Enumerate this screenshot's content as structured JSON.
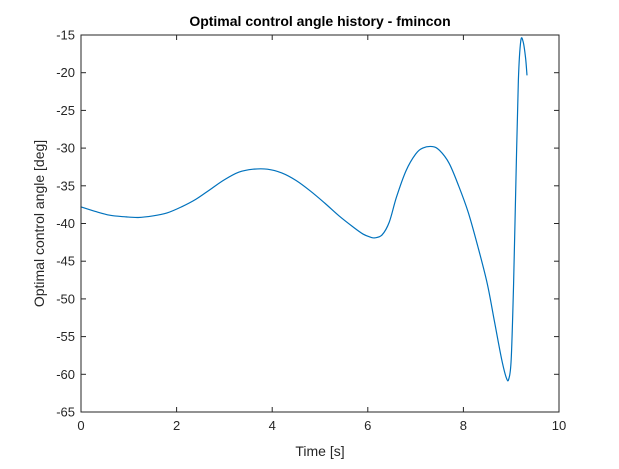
{
  "chart_data": {
    "type": "line",
    "title": "Optimal control angle history - fmincon",
    "xlabel": "Time [s]",
    "ylabel": "Optimal control angle [deg]",
    "xlim": [
      0,
      10
    ],
    "ylim": [
      -65,
      -15
    ],
    "xticks": [
      0,
      2,
      4,
      6,
      8,
      10
    ],
    "yticks": [
      -15,
      -20,
      -25,
      -30,
      -35,
      -40,
      -45,
      -50,
      -55,
      -60,
      -65
    ],
    "grid": false,
    "legend": "none",
    "box": true,
    "series": [
      {
        "color": "#0072BD",
        "x": [
          0,
          0.3,
          0.6,
          0.9,
          1.2,
          1.5,
          1.8,
          2.1,
          2.4,
          2.7,
          3.0,
          3.3,
          3.6,
          3.9,
          4.2,
          4.5,
          4.8,
          5.1,
          5.4,
          5.7,
          5.9,
          6.05,
          6.15,
          6.3,
          6.45,
          6.6,
          6.8,
          7.0,
          7.15,
          7.35,
          7.5,
          7.7,
          7.9,
          8.1,
          8.3,
          8.5,
          8.65,
          8.8,
          8.9,
          8.95,
          9.0,
          9.05,
          9.1,
          9.15,
          9.2,
          9.25,
          9.3,
          9.33
        ],
        "y": [
          -37.8,
          -38.4,
          -38.9,
          -39.1,
          -39.2,
          -39.0,
          -38.6,
          -37.8,
          -36.8,
          -35.5,
          -34.2,
          -33.2,
          -32.8,
          -32.8,
          -33.3,
          -34.3,
          -35.7,
          -37.3,
          -39.0,
          -40.5,
          -41.4,
          -41.8,
          -41.9,
          -41.5,
          -39.8,
          -36.5,
          -33.0,
          -30.8,
          -30.0,
          -29.8,
          -30.3,
          -32.0,
          -35.0,
          -38.5,
          -43.0,
          -48.0,
          -53.0,
          -58.0,
          -60.5,
          -60.6,
          -58.0,
          -48.0,
          -34.0,
          -21.0,
          -15.8,
          -15.9,
          -18.0,
          -20.3
        ]
      }
    ]
  }
}
